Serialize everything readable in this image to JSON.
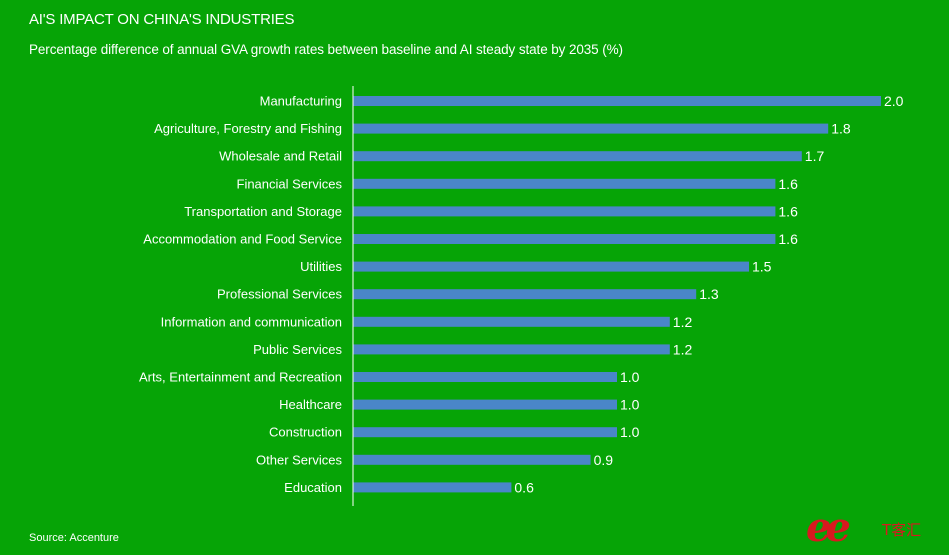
{
  "header": {
    "title": "AI'S IMPACT ON CHINA'S INDUSTRIES",
    "subtitle": "Percentage difference of annual GVA growth rates between baseline and AI steady state by 2035 (%)"
  },
  "footer": {
    "source": "Source: Accenture"
  },
  "logo": {
    "mark": "ee",
    "text": "T客汇"
  },
  "colors": {
    "background": "#06a406",
    "bar": "#4a86c8",
    "text": "#ffffff",
    "logo": "#d8191f"
  },
  "chart_data": {
    "type": "bar",
    "orientation": "horizontal",
    "title": "AI'S IMPACT ON CHINA'S INDUSTRIES",
    "subtitle": "Percentage difference of annual GVA growth rates between baseline and AI steady state by 2035 (%)",
    "categories": [
      "Manufacturing",
      "Agriculture, Forestry and Fishing",
      "Wholesale and Retail",
      "Financial Services",
      "Transportation and Storage",
      "Accommodation and Food Service",
      "Utilities",
      "Professional Services",
      "Information and communication",
      "Public Services",
      "Arts, Entertainment and Recreation",
      "Healthcare",
      "Construction",
      "Other Services",
      "Education"
    ],
    "values": [
      2.0,
      1.8,
      1.7,
      1.6,
      1.6,
      1.6,
      1.5,
      1.3,
      1.2,
      1.2,
      1.0,
      1.0,
      1.0,
      0.9,
      0.6
    ],
    "value_labels": [
      "2.0",
      "1.8",
      "1.7",
      "1.6",
      "1.6",
      "1.6",
      "1.5",
      "1.3",
      "1.2",
      "1.2",
      "1.0",
      "1.0",
      "1.0",
      "0.9",
      "0.6"
    ],
    "xlim": [
      0,
      2.0
    ],
    "grid": false,
    "legend": "none",
    "source": "Source: Accenture"
  }
}
